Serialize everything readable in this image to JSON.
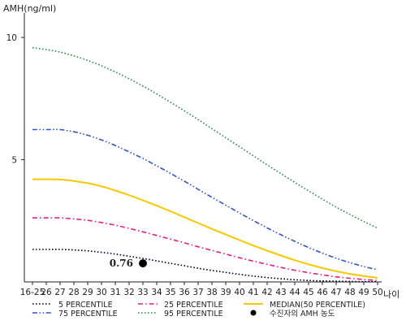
{
  "chart_data": {
    "type": "line",
    "ylabel": "AMH(ng/ml)",
    "xlabel": "나이",
    "ylim": [
      0,
      11
    ],
    "yticks": [
      5,
      10
    ],
    "grid": false,
    "legend_position": "bottom",
    "categories": [
      "16-25",
      "26",
      "27",
      "28",
      "29",
      "30",
      "31",
      "32",
      "33",
      "34",
      "35",
      "36",
      "37",
      "38",
      "39",
      "40",
      "41",
      "42",
      "43",
      "44",
      "45",
      "46",
      "47",
      "48",
      "49",
      "50"
    ],
    "series": [
      {
        "name": "5 PERCENTILE",
        "color": "#000033",
        "dash": "dotted",
        "values": [
          1.33,
          1.33,
          1.33,
          1.31,
          1.27,
          1.21,
          1.14,
          1.05,
          0.96,
          0.86,
          0.76,
          0.66,
          0.56,
          0.47,
          0.39,
          0.31,
          0.24,
          0.18,
          0.13,
          0.09,
          0.06,
          0.04,
          0.03,
          0.02,
          0.01,
          0.01
        ]
      },
      {
        "name": "25 PERCENTILE",
        "color": "#e0218a",
        "dash": "dashdot",
        "values": [
          2.62,
          2.62,
          2.62,
          2.58,
          2.52,
          2.43,
          2.32,
          2.19,
          2.05,
          1.9,
          1.75,
          1.6,
          1.44,
          1.29,
          1.14,
          0.99,
          0.85,
          0.72,
          0.59,
          0.48,
          0.38,
          0.29,
          0.21,
          0.15,
          0.1,
          0.06
        ]
      },
      {
        "name": "MEDIAN(50 PERCENTILE)",
        "color": "#f5c800",
        "dash": "solid",
        "values": [
          4.2,
          4.2,
          4.19,
          4.13,
          4.04,
          3.91,
          3.74,
          3.55,
          3.34,
          3.12,
          2.89,
          2.65,
          2.41,
          2.17,
          1.94,
          1.71,
          1.49,
          1.28,
          1.08,
          0.89,
          0.72,
          0.57,
          0.44,
          0.33,
          0.24,
          0.17
        ]
      },
      {
        "name": "75 PERCENTILE",
        "color": "#3355bb",
        "dash": "dashdotdot",
        "values": [
          6.23,
          6.23,
          6.23,
          6.14,
          6.0,
          5.81,
          5.58,
          5.32,
          5.05,
          4.75,
          4.44,
          4.12,
          3.79,
          3.46,
          3.14,
          2.82,
          2.51,
          2.21,
          1.93,
          1.66,
          1.41,
          1.18,
          0.97,
          0.79,
          0.63,
          0.5
        ]
      },
      {
        "name": "95 PERCENTILE",
        "color": "#338855",
        "dash": "dotted",
        "values": [
          9.58,
          9.5,
          9.4,
          9.25,
          9.06,
          8.84,
          8.59,
          8.31,
          8.01,
          7.69,
          7.35,
          7.0,
          6.64,
          6.27,
          5.9,
          5.53,
          5.16,
          4.79,
          4.43,
          4.07,
          3.73,
          3.39,
          3.06,
          2.76,
          2.47,
          2.2
        ]
      }
    ],
    "marker": {
      "name": "수진자의 AMH 농도",
      "category": "33",
      "value": 0.76,
      "label": "0.76",
      "color": "#000000"
    }
  }
}
